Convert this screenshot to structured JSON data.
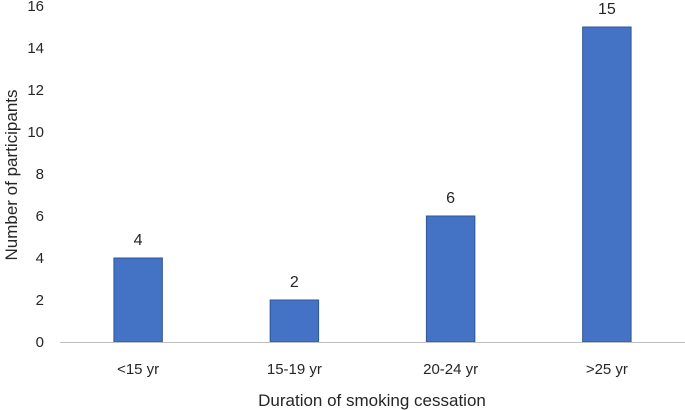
{
  "chart_data": {
    "type": "bar",
    "categories": [
      "<15 yr",
      "15-19 yr",
      "20-24 yr",
      ">25 yr"
    ],
    "values": [
      4,
      2,
      6,
      15
    ],
    "title": "",
    "xlabel": "Duration of smoking cessation",
    "ylabel": "Number of participants",
    "ylim": [
      0,
      16
    ],
    "yticks": [
      0,
      2,
      4,
      6,
      8,
      10,
      12,
      14,
      16
    ],
    "grid": false,
    "legend": "none",
    "bar_color": "#4472C4",
    "bar_edge_color": "#2F5597",
    "axis_color": "#BFBFBF",
    "data_labels": [
      "4",
      "2",
      "6",
      "15"
    ]
  }
}
